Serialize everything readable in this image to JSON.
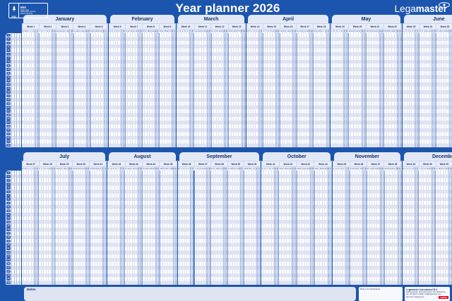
{
  "page": {
    "title": "Year planner 2026"
  },
  "brand": {
    "lega": "Lega",
    "master": "master"
  },
  "fsc": {
    "fsc": "FSC",
    "mix": "MIX",
    "line1": "Paper from",
    "line2": "responsible sources",
    "line3": "FSC® C017135"
  },
  "colors": {
    "background": "#1c55ad",
    "tab": "#e2e8f6",
    "weekend": "#c3d0ea",
    "chip": "#3a67bb",
    "edding_red": "#e30613"
  },
  "planner": {
    "rows_per_half": 30,
    "row_numbers": [
      1,
      2,
      3,
      4,
      5,
      6,
      7,
      8,
      9,
      10,
      11,
      12,
      13,
      14,
      15,
      16,
      17,
      18,
      19,
      20,
      21,
      22,
      23,
      24,
      25,
      26,
      27,
      28,
      29,
      30
    ],
    "halves": [
      {
        "months": [
          {
            "name": "January",
            "weeks": [
              {
                "label": "Week 1",
                "days": [
                  29,
                  30,
                  31,
                  1,
                  2,
                  3,
                  4
                ]
              },
              {
                "label": "Week 2",
                "days": [
                  5,
                  6,
                  7,
                  8,
                  9,
                  10,
                  11
                ]
              },
              {
                "label": "Week 3",
                "days": [
                  12,
                  13,
                  14,
                  15,
                  16,
                  17,
                  18
                ]
              },
              {
                "label": "Week 4",
                "days": [
                  19,
                  20,
                  21,
                  22,
                  23,
                  24,
                  25
                ]
              },
              {
                "label": "Week 5",
                "days": [
                  26,
                  27,
                  28,
                  29,
                  30,
                  31,
                  1
                ]
              }
            ]
          },
          {
            "name": "February",
            "weeks": [
              {
                "label": "Week 6",
                "days": [
                  2,
                  3,
                  4,
                  5,
                  6,
                  7,
                  8
                ]
              },
              {
                "label": "Week 7",
                "days": [
                  9,
                  10,
                  11,
                  12,
                  13,
                  14,
                  15
                ]
              },
              {
                "label": "Week 8",
                "days": [
                  16,
                  17,
                  18,
                  19,
                  20,
                  21,
                  22
                ]
              },
              {
                "label": "Week 9",
                "days": [
                  23,
                  24,
                  25,
                  26,
                  27,
                  28,
                  1
                ]
              }
            ]
          },
          {
            "name": "March",
            "weeks": [
              {
                "label": "Week 10",
                "days": [
                  2,
                  3,
                  4,
                  5,
                  6,
                  7,
                  8
                ]
              },
              {
                "label": "Week 11",
                "days": [
                  9,
                  10,
                  11,
                  12,
                  13,
                  14,
                  15
                ]
              },
              {
                "label": "Week 12",
                "days": [
                  16,
                  17,
                  18,
                  19,
                  20,
                  21,
                  22
                ]
              },
              {
                "label": "Week 13",
                "days": [
                  23,
                  24,
                  25,
                  26,
                  27,
                  28,
                  29
                ]
              }
            ]
          },
          {
            "name": "April",
            "weeks": [
              {
                "label": "Week 14",
                "days": [
                  30,
                  31,
                  1,
                  2,
                  3,
                  4,
                  5
                ]
              },
              {
                "label": "Week 15",
                "days": [
                  6,
                  7,
                  8,
                  9,
                  10,
                  11,
                  12
                ]
              },
              {
                "label": "Week 16",
                "days": [
                  13,
                  14,
                  15,
                  16,
                  17,
                  18,
                  19
                ]
              },
              {
                "label": "Week 17",
                "days": [
                  20,
                  21,
                  22,
                  23,
                  24,
                  25,
                  26
                ]
              },
              {
                "label": "Week 18",
                "days": [
                  27,
                  28,
                  29,
                  30,
                  1,
                  2,
                  3
                ]
              }
            ]
          },
          {
            "name": "May",
            "weeks": [
              {
                "label": "Week 19",
                "days": [
                  4,
                  5,
                  6,
                  7,
                  8,
                  9,
                  10
                ]
              },
              {
                "label": "Week 20",
                "days": [
                  11,
                  12,
                  13,
                  14,
                  15,
                  16,
                  17
                ]
              },
              {
                "label": "Week 21",
                "days": [
                  18,
                  19,
                  20,
                  21,
                  22,
                  23,
                  24
                ]
              },
              {
                "label": "Week 22",
                "days": [
                  25,
                  26,
                  27,
                  28,
                  29,
                  30,
                  31
                ]
              }
            ]
          },
          {
            "name": "June",
            "weeks": [
              {
                "label": "Week 23",
                "days": [
                  1,
                  2,
                  3,
                  4,
                  5,
                  6,
                  7
                ]
              },
              {
                "label": "Week 24",
                "days": [
                  8,
                  9,
                  10,
                  11,
                  12,
                  13,
                  14
                ]
              },
              {
                "label": "Week 25",
                "days": [
                  15,
                  16,
                  17,
                  18,
                  19,
                  20,
                  21
                ]
              },
              {
                "label": "Week 26",
                "days": [
                  22,
                  23,
                  24,
                  25,
                  26,
                  27,
                  28
                ]
              },
              {
                "label": "27",
                "days": [
                  29,
                  30
                ],
                "stub": true
              }
            ]
          }
        ]
      },
      {
        "months": [
          {
            "name": "July",
            "weeks": [
              {
                "label": "Week 27",
                "days": [
                  29,
                  30,
                  1,
                  2,
                  3,
                  4,
                  5
                ]
              },
              {
                "label": "Week 28",
                "days": [
                  6,
                  7,
                  8,
                  9,
                  10,
                  11,
                  12
                ]
              },
              {
                "label": "Week 29",
                "days": [
                  13,
                  14,
                  15,
                  16,
                  17,
                  18,
                  19
                ]
              },
              {
                "label": "Week 30",
                "days": [
                  20,
                  21,
                  22,
                  23,
                  24,
                  25,
                  26
                ]
              },
              {
                "label": "Week 31",
                "days": [
                  27,
                  28,
                  29,
                  30,
                  31,
                  1,
                  2
                ]
              }
            ]
          },
          {
            "name": "August",
            "weeks": [
              {
                "label": "Week 32",
                "days": [
                  3,
                  4,
                  5,
                  6,
                  7,
                  8,
                  9
                ]
              },
              {
                "label": "Week 33",
                "days": [
                  10,
                  11,
                  12,
                  13,
                  14,
                  15,
                  16
                ]
              },
              {
                "label": "Week 34",
                "days": [
                  17,
                  18,
                  19,
                  20,
                  21,
                  22,
                  23
                ]
              },
              {
                "label": "Week 35",
                "days": [
                  24,
                  25,
                  26,
                  27,
                  28,
                  29,
                  30
                ]
              }
            ]
          },
          {
            "name": "September",
            "weeks": [
              {
                "label": "Week 36",
                "days": [
                  31,
                  1,
                  2,
                  3,
                  4,
                  5,
                  6
                ]
              },
              {
                "label": "Week 37",
                "days": [
                  7,
                  8,
                  9,
                  10,
                  11,
                  12,
                  13
                ]
              },
              {
                "label": "Week 38",
                "days": [
                  14,
                  15,
                  16,
                  17,
                  18,
                  19,
                  20
                ]
              },
              {
                "label": "Week 39",
                "days": [
                  21,
                  22,
                  23,
                  24,
                  25,
                  26,
                  27
                ]
              },
              {
                "label": "Week 40",
                "days": [
                  28,
                  29,
                  30,
                  1,
                  2,
                  3,
                  4
                ]
              }
            ]
          },
          {
            "name": "October",
            "weeks": [
              {
                "label": "Week 41",
                "days": [
                  5,
                  6,
                  7,
                  8,
                  9,
                  10,
                  11
                ]
              },
              {
                "label": "Week 42",
                "days": [
                  12,
                  13,
                  14,
                  15,
                  16,
                  17,
                  18
                ]
              },
              {
                "label": "Week 43",
                "days": [
                  19,
                  20,
                  21,
                  22,
                  23,
                  24,
                  25
                ]
              },
              {
                "label": "Week 44",
                "days": [
                  26,
                  27,
                  28,
                  29,
                  30,
                  31,
                  1
                ]
              }
            ]
          },
          {
            "name": "November",
            "weeks": [
              {
                "label": "Week 45",
                "days": [
                  2,
                  3,
                  4,
                  5,
                  6,
                  7,
                  8
                ]
              },
              {
                "label": "Week 46",
                "days": [
                  9,
                  10,
                  11,
                  12,
                  13,
                  14,
                  15
                ]
              },
              {
                "label": "Week 47",
                "days": [
                  16,
                  17,
                  18,
                  19,
                  20,
                  21,
                  22
                ]
              },
              {
                "label": "Week 48",
                "days": [
                  23,
                  24,
                  25,
                  26,
                  27,
                  28,
                  29
                ]
              }
            ]
          },
          {
            "name": "December",
            "weeks": [
              {
                "label": "Week 49",
                "days": [
                  30,
                  1,
                  2,
                  3,
                  4,
                  5,
                  6
                ]
              },
              {
                "label": "Week 50",
                "days": [
                  7,
                  8,
                  9,
                  10,
                  11,
                  12,
                  13
                ]
              },
              {
                "label": "Week 51",
                "days": [
                  14,
                  15,
                  16,
                  17,
                  18,
                  19,
                  20
                ]
              },
              {
                "label": "Week 52",
                "days": [
                  21,
                  22,
                  23,
                  24,
                  25,
                  26,
                  27
                ]
              },
              {
                "label": "Week 53",
                "days": [
                  28,
                  29,
                  30,
                  31,
                  1,
                  2,
                  3
                ]
              }
            ]
          }
        ]
      }
    ]
  },
  "footer": {
    "notes_label": "Notes",
    "made_in": "Made in the Netherlands",
    "company": {
      "name": "Legamaster International B.V.",
      "address": "Kwinkweerd 62, 7241 CW Lochem, The Netherlands",
      "contact": "Tel: +31 (0)573 713000, info@legamaster.com",
      "group": "part of the edding group",
      "edding": "edding"
    }
  }
}
